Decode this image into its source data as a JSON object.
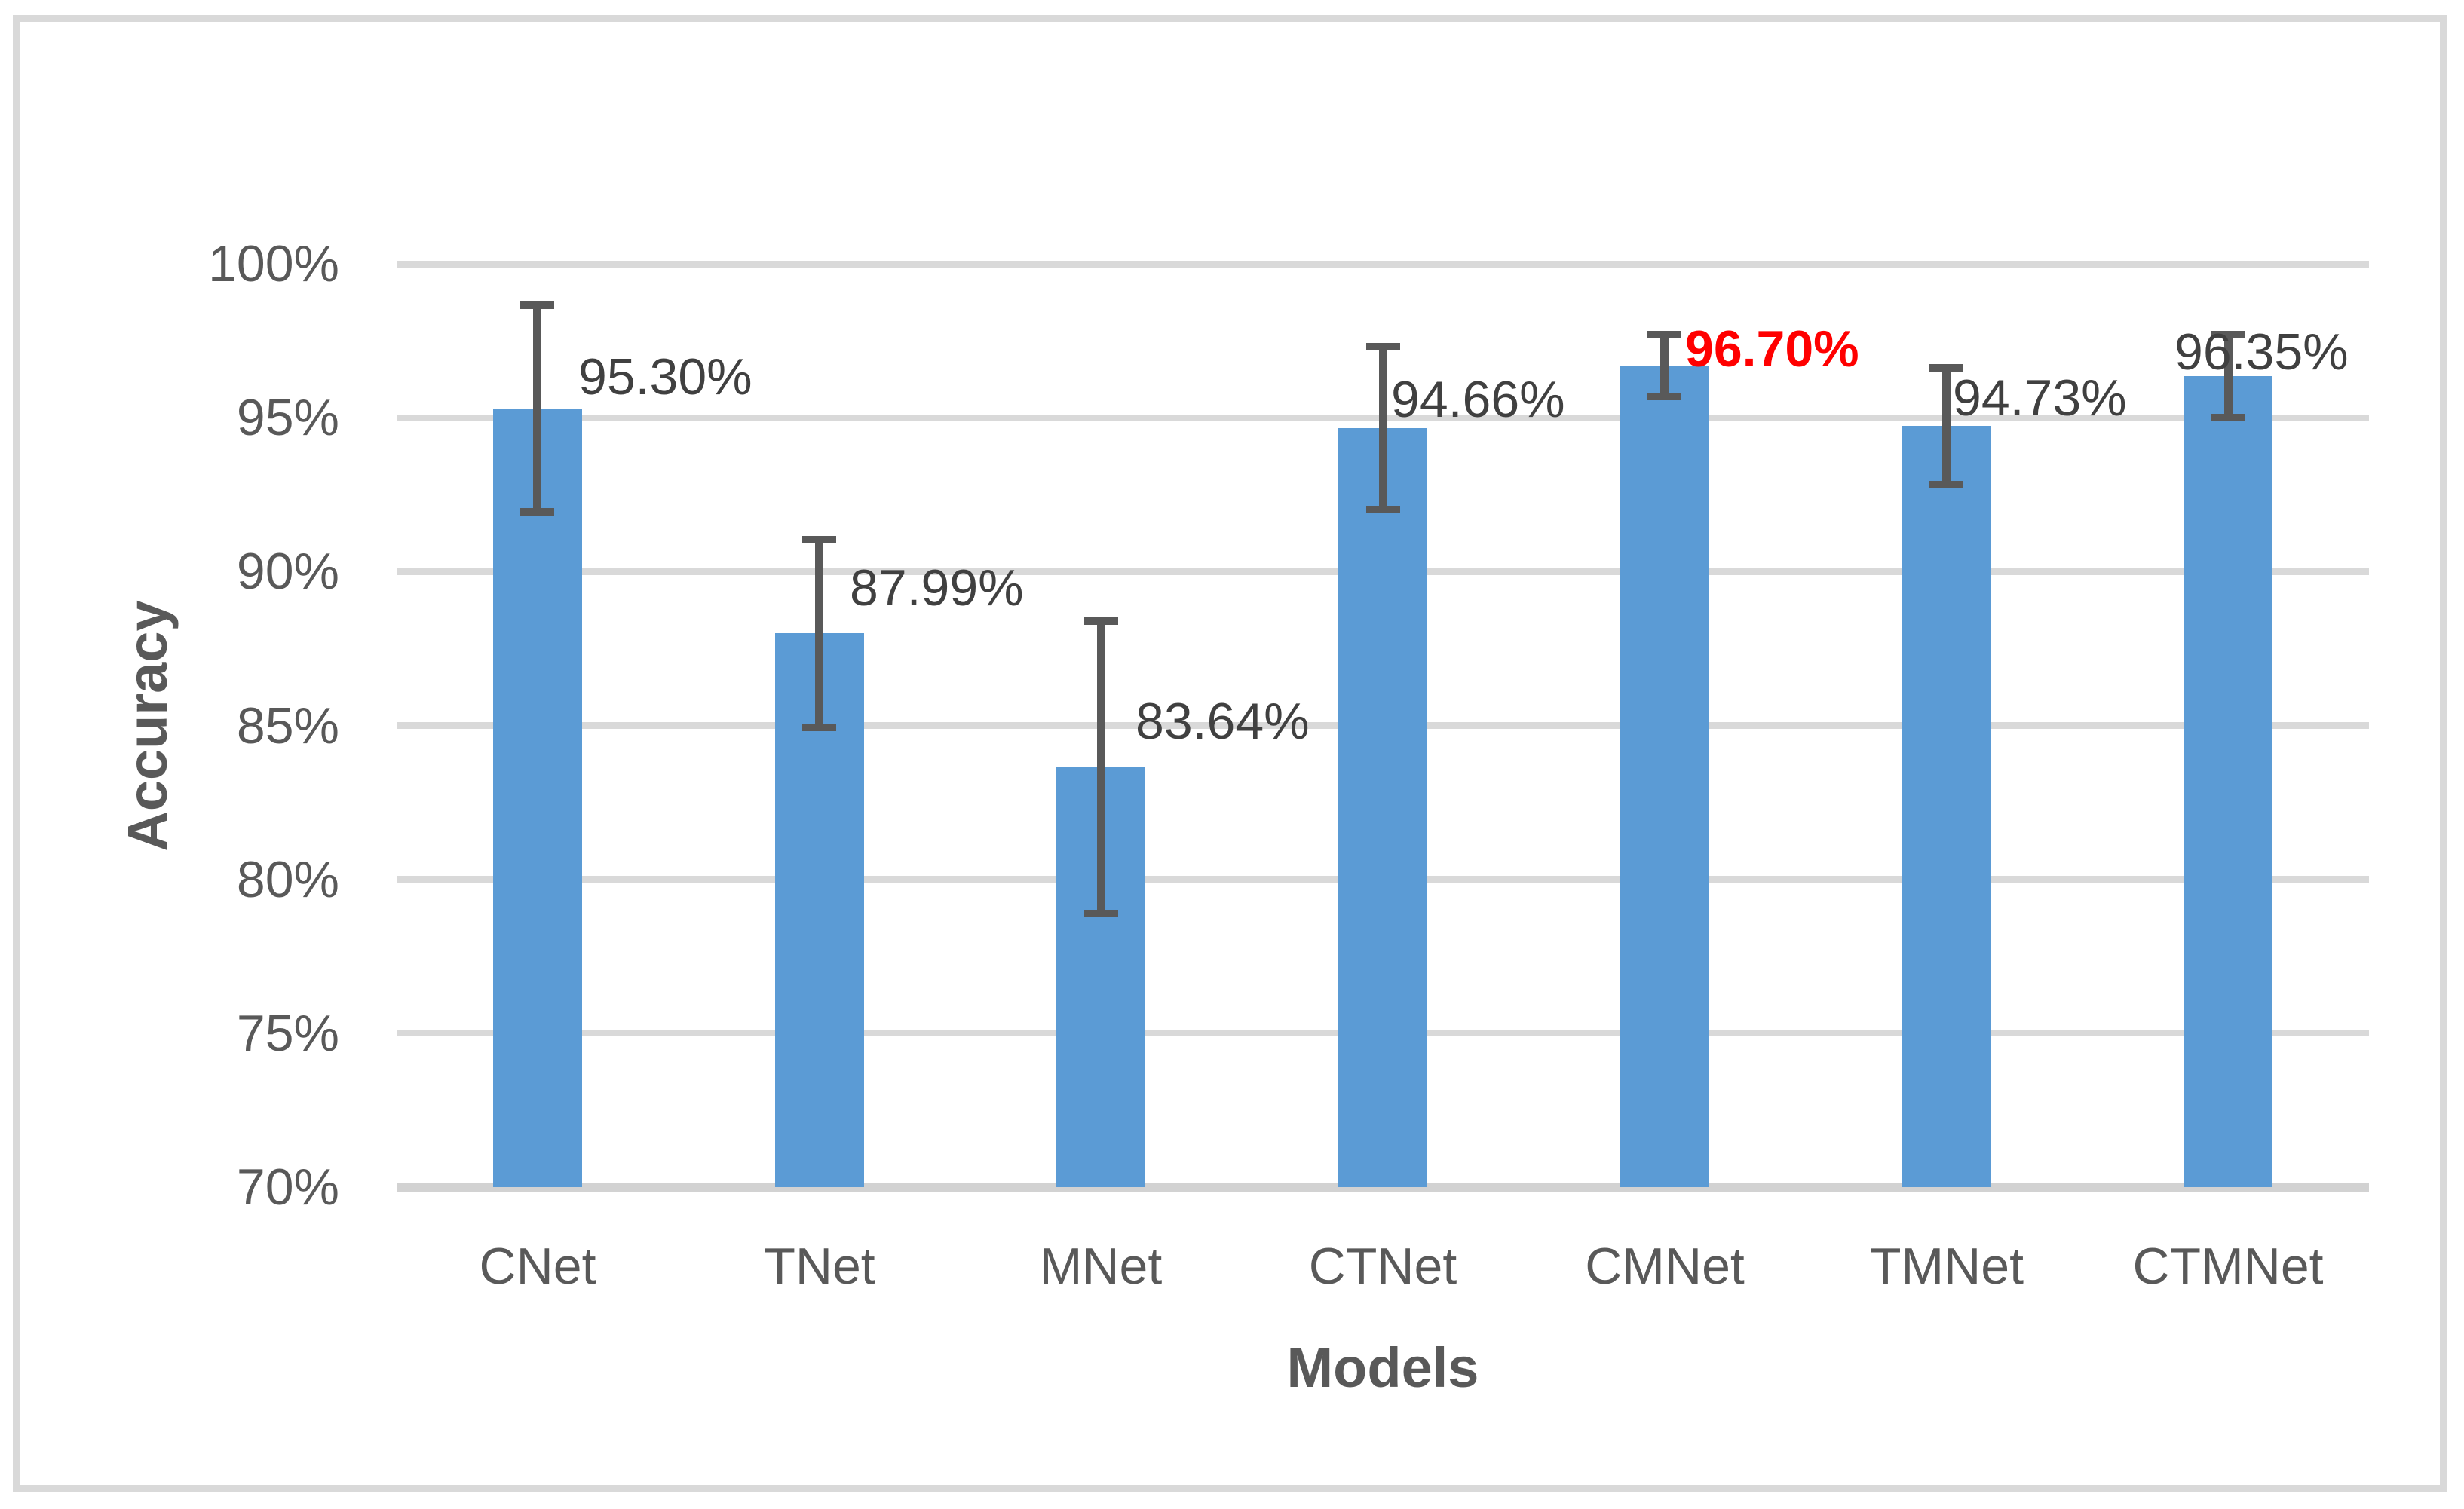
{
  "chart_data": {
    "type": "bar",
    "title": "",
    "xlabel": "Models",
    "ylabel": "Accuracy",
    "categories": [
      "CNet",
      "TNet",
      "MNet",
      "CTNet",
      "CMNet",
      "TMNet",
      "CTMNet"
    ],
    "values": [
      95.3,
      87.99,
      83.64,
      94.66,
      96.7,
      94.73,
      96.35
    ],
    "data_labels": [
      "95.30%",
      "87.99%",
      "83.64%",
      "94.66%",
      "96.70%",
      "94.73%",
      "96.35%"
    ],
    "error_bars": [
      3.35,
      3.05,
      4.75,
      2.65,
      1.0,
      1.9,
      1.35
    ],
    "highlight_index": 4,
    "y_ticks": [
      {
        "label": "100%",
        "value": 100
      },
      {
        "label": "95%",
        "value": 95
      },
      {
        "label": "90%",
        "value": 90
      },
      {
        "label": "85%",
        "value": 85
      },
      {
        "label": "80%",
        "value": 80
      },
      {
        "label": "75%",
        "value": 75
      },
      {
        "label": "70%",
        "value": 70
      }
    ],
    "ylim": [
      70,
      100
    ],
    "grid": true,
    "legend": "none",
    "label_offsets_x": [
      54,
      40,
      46,
      11,
      27,
      9,
      -71
    ],
    "label_offsets_y": [
      -42,
      -60,
      -61,
      -38,
      -22,
      -37,
      -32
    ],
    "colors": {
      "bar": "#5B9BD5",
      "error_bar": "#595959",
      "gridline": "#D9D9D9",
      "axis_line": "#D2D2D2",
      "tick_text": "#595959",
      "category_text": "#595959",
      "axis_title_text": "#595959",
      "data_label_text": "#404040",
      "highlight_label_text": "#FF0000",
      "chart_border": "#D9D9D9",
      "background": "#FFFFFF"
    }
  }
}
